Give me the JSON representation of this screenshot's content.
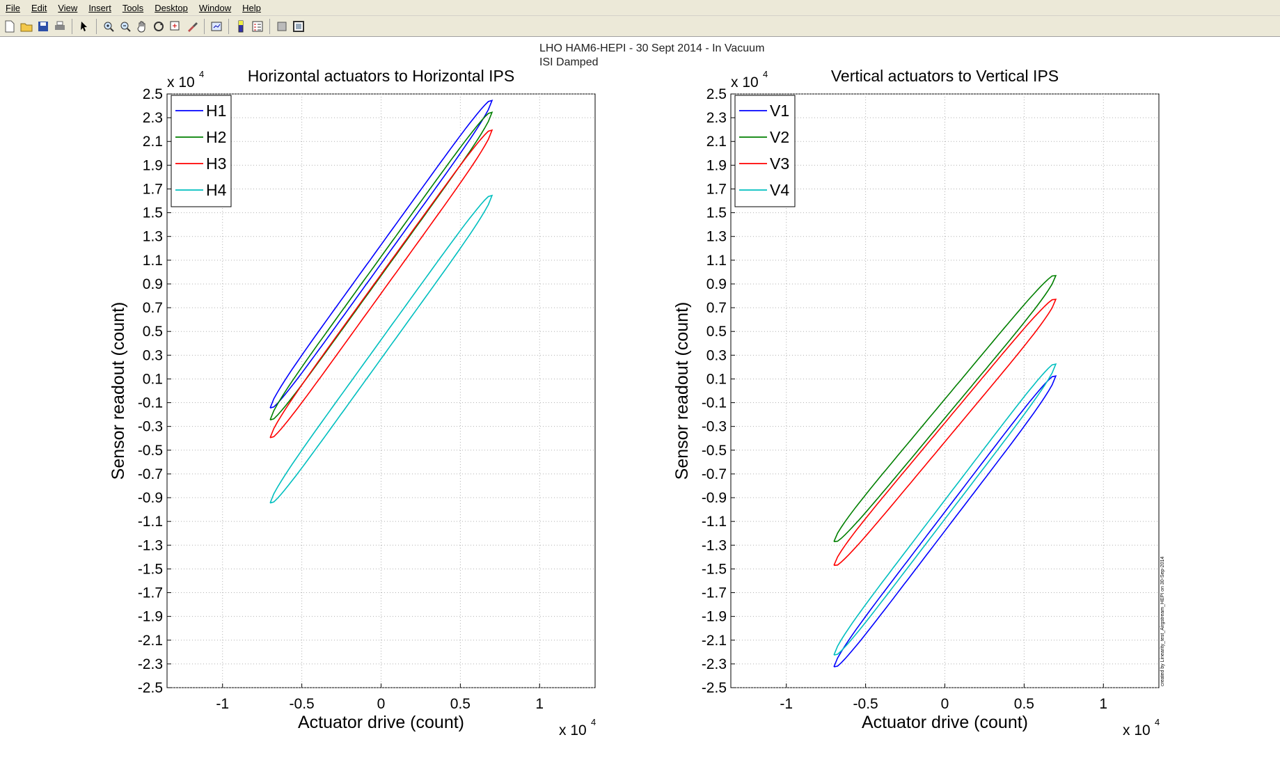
{
  "menubar": {
    "items": [
      "File",
      "Edit",
      "View",
      "Insert",
      "Tools",
      "Desktop",
      "Window",
      "Help"
    ]
  },
  "toolbar": {
    "icons": [
      "new-file-icon",
      "open-file-icon",
      "save-icon",
      "print-icon",
      "select-arrow-icon",
      "zoom-in-icon",
      "zoom-out-icon",
      "pan-hand-icon",
      "rotate-3d-icon",
      "data-cursor-icon",
      "brush-icon",
      "link-plot-icon",
      "colorbar-icon",
      "legend-icon",
      "hide-plot-tools-icon",
      "show-plot-tools-icon"
    ]
  },
  "figure": {
    "suptitle_line1": "LHO HAM6-HEPI - 30 Sept 2014 - In Vacuum",
    "suptitle_line2": "ISI Damped",
    "footnote": "created by Linearity_test_Airgstream_HEPI on 30-Sep-2014"
  },
  "chart_data": [
    {
      "type": "line",
      "title": "Horizontal actuators to Horizontal IPS",
      "xlabel": "Actuator drive (count)",
      "ylabel": "Sensor readout (count)",
      "x_exponent": "x 10",
      "x_exponent_power": "4",
      "y_exponent": "x 10",
      "y_exponent_power": "4",
      "xlim": [
        -1.35,
        1.35
      ],
      "ylim": [
        -2.5,
        2.5
      ],
      "xticks": [
        -1,
        -0.5,
        0,
        0.5,
        1
      ],
      "xtick_labels": [
        "-1",
        "-0.5",
        "0",
        "0.5",
        "1"
      ],
      "yticks": [
        2.5,
        2.3,
        2.1,
        1.9,
        1.7,
        1.5,
        1.3,
        1.1,
        0.9,
        0.7,
        0.5,
        0.3,
        0.1,
        -0.1,
        -0.3,
        -0.5,
        -0.7,
        -0.9,
        -1.1,
        -1.3,
        -1.5,
        -1.7,
        -1.9,
        -2.1,
        -2.3,
        -2.5
      ],
      "ytick_labels": [
        "2.5",
        "2.3",
        "2.1",
        "1.9",
        "1.7",
        "1.5",
        "1.3",
        "1.1",
        "0.9",
        "0.7",
        "0.5",
        "0.3",
        "0.1",
        "-0.1",
        "-0.3",
        "-0.5",
        "-0.7",
        "-0.9",
        "-1.1",
        "-1.3",
        "-1.5",
        "-1.7",
        "-1.9",
        "-2.1",
        "-2.3",
        "-2.5"
      ],
      "grid": true,
      "legend_position": "top-left",
      "series": [
        {
          "name": "H1",
          "color": "#0000ff",
          "slope": 1.85,
          "offset": 1.15,
          "width": 0.08,
          "xmax_start": 0.0
        },
        {
          "name": "H2",
          "color": "#007f00",
          "slope": 1.85,
          "offset": 1.05,
          "width": 0.08,
          "xmax_start": 0.0
        },
        {
          "name": "H3",
          "color": "#ff0000",
          "slope": 1.85,
          "offset": 0.9,
          "width": 0.08,
          "xmax_start": 0.0
        },
        {
          "name": "H4",
          "color": "#00bfbf",
          "slope": 1.85,
          "offset": 0.35,
          "width": 0.08,
          "xmax_start": 0.0
        }
      ]
    },
    {
      "type": "line",
      "title": "Vertical actuators to Vertical IPS",
      "xlabel": "Actuator drive (count)",
      "ylabel": "Sensor readout (count)",
      "x_exponent": "x 10",
      "x_exponent_power": "4",
      "y_exponent": "x 10",
      "y_exponent_power": "4",
      "xlim": [
        -1.35,
        1.35
      ],
      "ylim": [
        -2.5,
        2.5
      ],
      "xticks": [
        -1,
        -0.5,
        0,
        0.5,
        1
      ],
      "xtick_labels": [
        "-1",
        "-0.5",
        "0",
        "0.5",
        "1"
      ],
      "yticks": [
        2.5,
        2.3,
        2.1,
        1.9,
        1.7,
        1.5,
        1.3,
        1.1,
        0.9,
        0.7,
        0.5,
        0.3,
        0.1,
        -0.1,
        -0.3,
        -0.5,
        -0.7,
        -0.9,
        -1.1,
        -1.3,
        -1.5,
        -1.7,
        -1.9,
        -2.1,
        -2.3,
        -2.5
      ],
      "ytick_labels": [
        "2.5",
        "2.3",
        "2.1",
        "1.9",
        "1.7",
        "1.5",
        "1.3",
        "1.1",
        "0.9",
        "0.7",
        "0.5",
        "0.3",
        "0.1",
        "-0.1",
        "-0.3",
        "-0.5",
        "-0.7",
        "-0.9",
        "-1.1",
        "-1.3",
        "-1.5",
        "-1.7",
        "-1.9",
        "-2.1",
        "-2.3",
        "-2.5"
      ],
      "grid": true,
      "legend_position": "top-left",
      "series": [
        {
          "name": "V1",
          "color": "#0000ff",
          "slope": 1.75,
          "offset": -1.1,
          "width": 0.08
        },
        {
          "name": "V2",
          "color": "#007f00",
          "slope": 1.6,
          "offset": -0.15,
          "width": 0.08
        },
        {
          "name": "V3",
          "color": "#ff0000",
          "slope": 1.6,
          "offset": -0.35,
          "width": 0.08
        },
        {
          "name": "V4",
          "color": "#00bfbf",
          "slope": 1.75,
          "offset": -1.0,
          "width": 0.08
        }
      ]
    }
  ]
}
